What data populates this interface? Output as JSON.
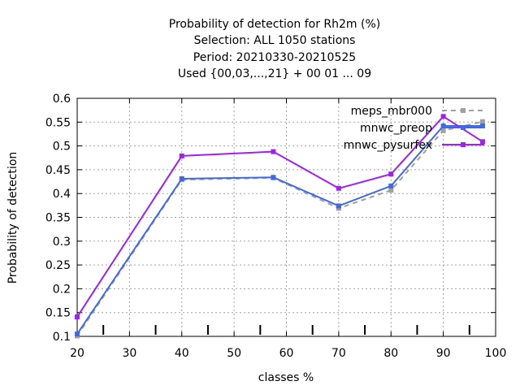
{
  "chart_data": {
    "type": "line",
    "title_lines": [
      "Probability of detection  for Rh2m (%)",
      "Selection: ALL    1050 stations",
      "Period: 20210330-20210525",
      "Used {00,03,...,21} + 00 01 ... 09"
    ],
    "xlabel": "classes %",
    "ylabel": "Probability of detection",
    "xlim": [
      20,
      100
    ],
    "ylim": [
      0.1,
      0.6
    ],
    "xticks": [
      20,
      30,
      40,
      50,
      60,
      70,
      80,
      90,
      100
    ],
    "yticks": [
      0.1,
      0.15,
      0.2,
      0.25,
      0.3,
      0.35,
      0.4,
      0.45,
      0.5,
      0.55,
      0.6
    ],
    "xtick_labels": [
      "20",
      "30",
      "40",
      "50",
      "60",
      "70",
      "80",
      "90",
      "100"
    ],
    "ytick_labels": [
      "0.1",
      "0.15",
      "0.2",
      "0.25",
      "0.3",
      "0.35",
      "0.4",
      "0.45",
      "0.5",
      "0.55",
      "0.6"
    ],
    "minor_x_ticks": [
      25,
      35,
      45,
      55,
      65,
      75,
      85,
      95
    ],
    "grid": true,
    "legend_position": "top-right",
    "series": [
      {
        "name": "meps_mbr000",
        "color": "#a0a0a0",
        "dashed": true,
        "x": [
          20,
          40,
          57.5,
          70,
          80,
          90,
          97.5
        ],
        "y": [
          0.101,
          0.429,
          0.433,
          0.369,
          0.407,
          0.532,
          0.551
        ]
      },
      {
        "name": "mnwc_preop",
        "color": "#4169e1",
        "dashed": false,
        "x": [
          20,
          40,
          57.5,
          70,
          80,
          90,
          97.5
        ],
        "y": [
          0.105,
          0.431,
          0.434,
          0.374,
          0.416,
          0.542,
          0.542
        ]
      },
      {
        "name": "mnwc_pysurfex",
        "color": "#a020f0",
        "dashed": false,
        "x": [
          20,
          40,
          57.5,
          70,
          80,
          90,
          97.5
        ],
        "y": [
          0.141,
          0.479,
          0.488,
          0.411,
          0.441,
          0.562,
          0.509
        ]
      }
    ]
  }
}
